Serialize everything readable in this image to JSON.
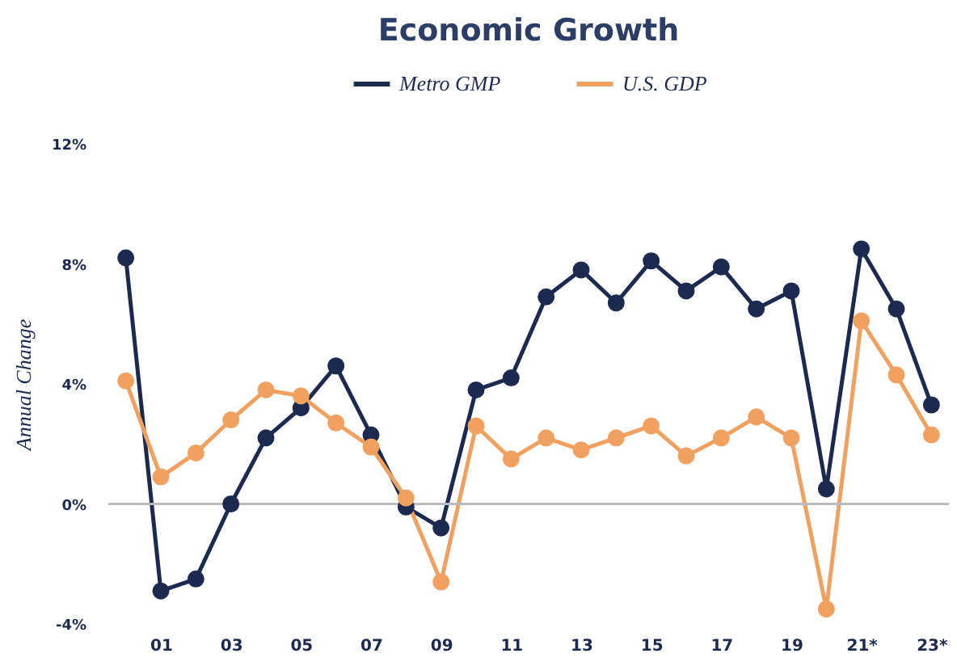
{
  "chart_data": {
    "type": "line",
    "title": "Economic Growth",
    "ylabel": "Annual Change",
    "categories": [
      null,
      "01",
      null,
      "03",
      null,
      "05",
      null,
      "07",
      null,
      "09",
      null,
      "11",
      null,
      "13",
      null,
      "15",
      null,
      "17",
      null,
      "19",
      null,
      "21*",
      null,
      "23*"
    ],
    "series": [
      {
        "name": "Metro GMP",
        "color": "#1b2a4e",
        "values": [
          8.2,
          -2.9,
          -2.5,
          0,
          2.2,
          3.2,
          4.6,
          2.3,
          -0.1,
          -0.8,
          3.8,
          4.2,
          6.9,
          7.8,
          6.7,
          8.1,
          7.1,
          7.9,
          6.5,
          7.1,
          0.5,
          8.5,
          6.5,
          3.3
        ]
      },
      {
        "name": "U.S. GDP",
        "color": "#f0a160",
        "values": [
          4.1,
          0.9,
          1.7,
          2.8,
          3.8,
          3.6,
          2.7,
          1.9,
          0.2,
          -2.6,
          2.6,
          1.5,
          2.2,
          1.8,
          2.2,
          2.6,
          1.6,
          2.2,
          2.9,
          2.2,
          -3.5,
          6.1,
          4.3,
          2.3
        ]
      }
    ],
    "ylim": [
      -4,
      12
    ],
    "yticks": [
      {
        "value": -4,
        "label": "-4%"
      },
      {
        "value": 0,
        "label": "0%"
      },
      {
        "value": 4,
        "label": "4%"
      },
      {
        "value": 8,
        "label": "8%"
      },
      {
        "value": 12,
        "label": "12%"
      }
    ],
    "ref_lines": [
      {
        "axis": "y",
        "value": 0,
        "color": "#b8bcc0"
      }
    ],
    "grid": false,
    "legend": "top",
    "marker": "circle",
    "line_style": "solid"
  }
}
